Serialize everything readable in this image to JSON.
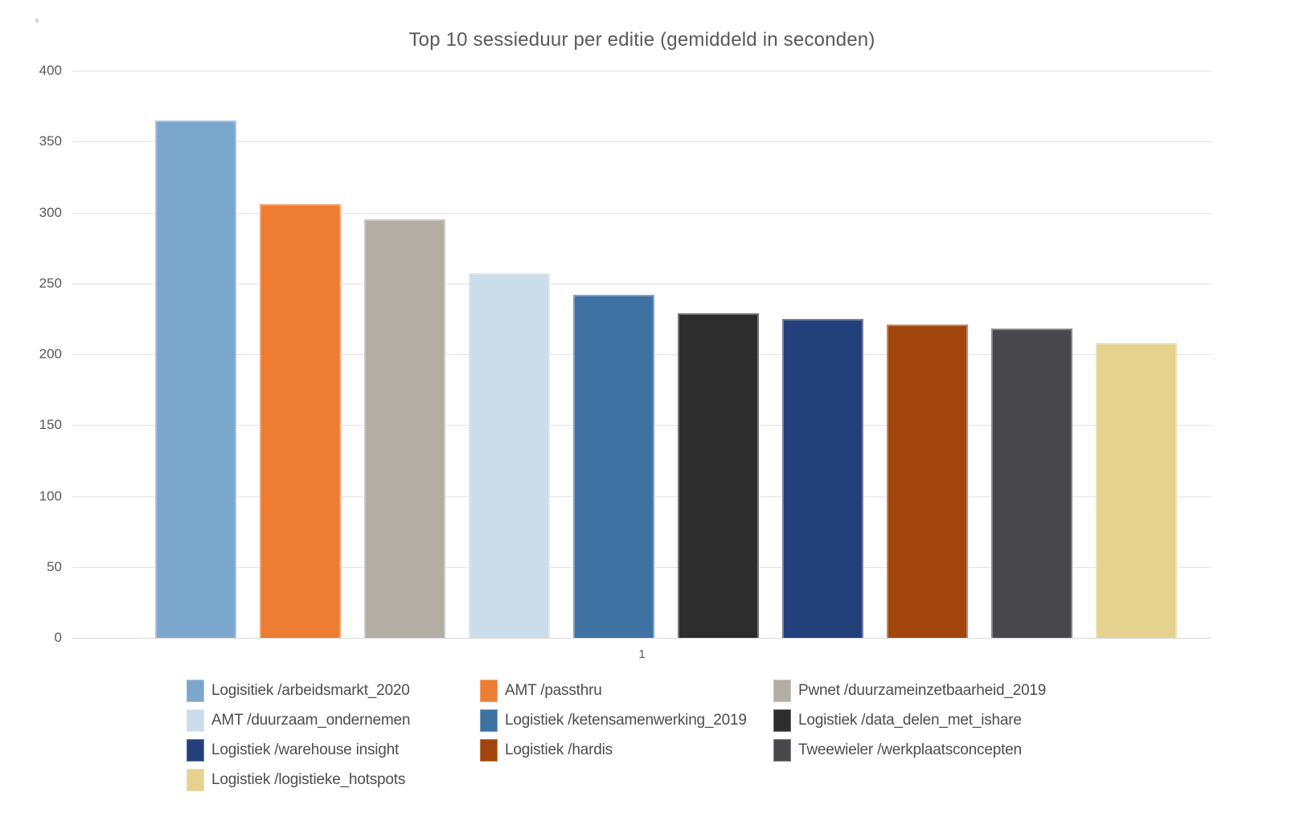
{
  "page": {
    "background_color": "#ffffff",
    "text_color": "#595959"
  },
  "chart_data": {
    "type": "bar",
    "title": "Top 10 sessieduur per editie (gemiddeld in seconden)",
    "xlabel": "",
    "ylabel": "",
    "categories": [
      "1"
    ],
    "x_category_label": "1",
    "ylim": [
      0,
      400
    ],
    "y_ticks": [
      0,
      50,
      100,
      150,
      200,
      250,
      300,
      350,
      400
    ],
    "grid": true,
    "legend_position": "bottom",
    "gridline_color": "#e2e2e2",
    "series": [
      {
        "name": "Logisitiek /arbeidsmarkt_2020",
        "value": 365,
        "color": "#7BA7CD"
      },
      {
        "name": "AMT /passthru",
        "value": 306,
        "color": "#EC7D33"
      },
      {
        "name": "Pwnet /duurzameinzetbaarheid_2019",
        "value": 295,
        "color": "#B3AEA3"
      },
      {
        "name": "AMT /duurzaam_ondernemen",
        "value": 257,
        "color": "#CBDDEA"
      },
      {
        "name": "Logistiek /ketensamenwerking_2019",
        "value": 242,
        "color": "#3D72A3"
      },
      {
        "name": "Logistiek /data_delen_met_ishare",
        "value": 229,
        "color": "#2D2D2D"
      },
      {
        "name": "Logistiek /warehouse insight",
        "value": 225,
        "color": "#24407A"
      },
      {
        "name": "Logistiek /hardis",
        "value": 221,
        "color": "#A2450C"
      },
      {
        "name": "Tweewieler /werkplaatsconcepten",
        "value": 218,
        "color": "#48484C"
      },
      {
        "name": "Logistiek /logistieke_hotspots",
        "value": 208,
        "color": "#E5D28E"
      }
    ]
  }
}
